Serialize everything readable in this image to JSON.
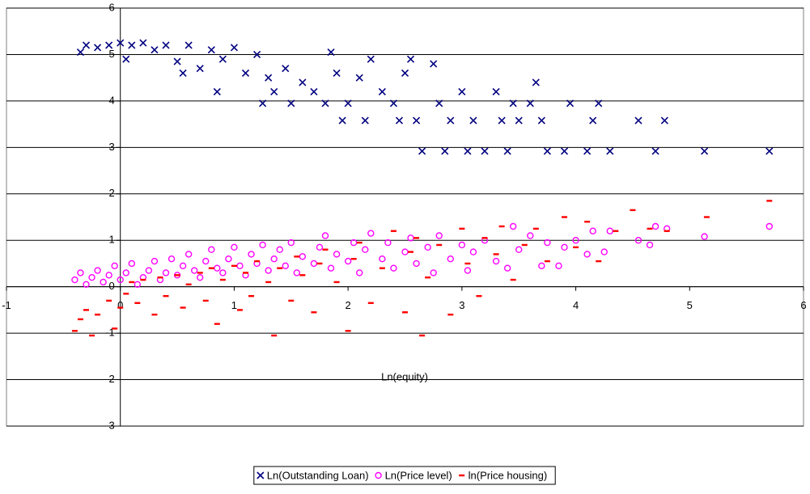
{
  "chart_data": {
    "type": "scatter",
    "x_label": "Ln(equity)",
    "xlim": [
      -1,
      6
    ],
    "xticks": [
      -1,
      0,
      1,
      2,
      3,
      4,
      5,
      6
    ],
    "ylim": [
      -3,
      6
    ],
    "yticks": [
      -3,
      -2,
      -1,
      0,
      1,
      2,
      3,
      4,
      5,
      6
    ],
    "grid": true,
    "legend": "bottom",
    "series": [
      {
        "name": "Ln(Outstanding Loan)",
        "color": "#000080",
        "marker": "x",
        "x": [
          -0.35,
          -0.3,
          -0.2,
          -0.1,
          0,
          0.05,
          0.1,
          0.2,
          0.3,
          0.4,
          0.5,
          0.55,
          0.6,
          0.7,
          0.8,
          0.85,
          0.9,
          1.0,
          1.1,
          1.2,
          1.3,
          1.35,
          1.25,
          1.45,
          1.5,
          1.6,
          1.7,
          1.8,
          1.85,
          1.9,
          1.95,
          2.0,
          2.1,
          2.15,
          2.2,
          2.3,
          2.4,
          2.45,
          2.5,
          2.55,
          2.6,
          2.65,
          2.75,
          2.8,
          2.85,
          2.9,
          3.0,
          3.05,
          3.1,
          3.2,
          3.3,
          3.35,
          3.4,
          3.45,
          3.5,
          3.6,
          3.65,
          3.7,
          3.75,
          3.9,
          3.95,
          4.1,
          4.15,
          4.2,
          4.3,
          4.55,
          4.7,
          4.78,
          5.13,
          5.7
        ],
        "values": [
          5.05,
          5.2,
          5.15,
          5.2,
          5.25,
          4.9,
          5.2,
          5.25,
          5.1,
          5.2,
          4.85,
          4.6,
          5.2,
          4.7,
          5.1,
          4.2,
          4.9,
          5.15,
          4.6,
          5.0,
          4.5,
          4.2,
          3.95,
          4.7,
          3.95,
          4.4,
          4.2,
          3.95,
          5.05,
          4.6,
          3.58,
          3.95,
          4.5,
          3.58,
          4.9,
          4.2,
          3.95,
          3.58,
          4.6,
          4.9,
          3.58,
          2.92,
          4.8,
          3.95,
          2.92,
          3.58,
          4.2,
          2.92,
          3.58,
          2.92,
          4.2,
          3.58,
          2.92,
          3.95,
          3.58,
          3.95,
          4.4,
          3.58,
          2.92,
          2.92,
          3.95,
          2.92,
          3.58,
          3.95,
          2.92,
          3.58,
          2.92,
          3.58,
          2.92,
          2.92
        ]
      },
      {
        "name": "Ln(Price level)",
        "color": "#ff00ff",
        "marker": "o",
        "x": [
          -0.4,
          -0.35,
          -0.3,
          -0.25,
          -0.2,
          -0.15,
          -0.1,
          -0.05,
          0,
          0.05,
          0.1,
          0.15,
          0.2,
          0.25,
          0.3,
          0.35,
          0.4,
          0.45,
          0.5,
          0.55,
          0.6,
          0.65,
          0.7,
          0.75,
          0.8,
          0.85,
          0.9,
          0.95,
          1.0,
          1.05,
          1.1,
          1.15,
          1.2,
          1.25,
          1.3,
          1.35,
          1.4,
          1.45,
          1.5,
          1.55,
          1.6,
          1.7,
          1.75,
          1.8,
          1.85,
          1.9,
          2.0,
          2.05,
          2.1,
          2.15,
          2.2,
          2.3,
          2.35,
          2.4,
          2.5,
          2.55,
          2.6,
          2.7,
          2.75,
          2.8,
          2.9,
          3.0,
          3.05,
          3.1,
          3.2,
          3.3,
          3.4,
          3.45,
          3.5,
          3.6,
          3.7,
          3.75,
          3.85,
          3.9,
          4.0,
          4.1,
          4.15,
          4.25,
          4.3,
          4.55,
          4.65,
          4.7,
          4.8,
          5.13,
          5.7
        ],
        "values": [
          0.15,
          0.3,
          0.05,
          0.2,
          0.35,
          0.1,
          0.25,
          0.45,
          0.15,
          0.3,
          0.5,
          0.05,
          0.2,
          0.35,
          0.55,
          0.15,
          0.3,
          0.6,
          0.25,
          0.45,
          0.7,
          0.35,
          0.2,
          0.55,
          0.8,
          0.4,
          0.3,
          0.6,
          0.85,
          0.45,
          0.25,
          0.7,
          0.5,
          0.9,
          0.35,
          0.6,
          0.8,
          0.45,
          0.95,
          0.3,
          0.65,
          0.5,
          0.85,
          1.1,
          0.4,
          0.7,
          0.55,
          0.95,
          0.3,
          0.8,
          1.15,
          0.6,
          0.95,
          0.4,
          0.75,
          1.05,
          0.5,
          0.85,
          0.3,
          1.1,
          0.6,
          0.9,
          0.35,
          0.75,
          1.0,
          0.55,
          0.4,
          1.3,
          0.8,
          1.1,
          0.45,
          0.95,
          0.45,
          0.85,
          1.0,
          0.7,
          1.2,
          0.75,
          1.2,
          1.0,
          0.9,
          1.3,
          1.25,
          1.08,
          1.3
        ]
      },
      {
        "name": "ln(Price housing)",
        "color": "#ff0000",
        "marker": "-",
        "x": [
          -0.4,
          -0.35,
          -0.3,
          -0.25,
          -0.2,
          -0.1,
          -0.05,
          0,
          0.05,
          0.1,
          0.15,
          0.2,
          0.3,
          0.35,
          0.4,
          0.5,
          0.55,
          0.6,
          0.7,
          0.75,
          0.8,
          0.85,
          0.9,
          1.0,
          1.05,
          1.1,
          1.15,
          1.2,
          1.3,
          1.35,
          1.4,
          1.5,
          1.55,
          1.6,
          1.7,
          1.75,
          1.8,
          1.9,
          2.0,
          2.05,
          2.1,
          2.2,
          2.3,
          2.4,
          2.5,
          2.55,
          2.6,
          2.65,
          2.7,
          2.8,
          2.9,
          3.0,
          3.05,
          3.15,
          3.2,
          3.3,
          3.35,
          3.45,
          3.55,
          3.65,
          3.75,
          3.9,
          4.0,
          4.1,
          4.2,
          4.35,
          4.5,
          4.65,
          4.8,
          5.15,
          5.7
        ],
        "values": [
          -0.95,
          -0.7,
          -0.5,
          -1.05,
          -0.6,
          -0.3,
          -0.9,
          -0.45,
          -0.15,
          0.1,
          -0.35,
          0.15,
          -0.6,
          0.2,
          -0.2,
          0.25,
          -0.45,
          0.05,
          0.3,
          -0.3,
          0.4,
          -0.8,
          0.15,
          0.45,
          -0.5,
          0.3,
          -0.2,
          0.55,
          0.1,
          -1.05,
          0.4,
          -0.3,
          0.65,
          0.25,
          -0.55,
          0.5,
          0.8,
          0.1,
          -0.95,
          0.6,
          0.95,
          -0.35,
          0.4,
          1.2,
          -0.55,
          0.75,
          1.05,
          -1.05,
          0.2,
          0.9,
          -0.6,
          1.25,
          0.5,
          -0.2,
          1.05,
          0.7,
          1.3,
          0.15,
          0.9,
          1.25,
          0.55,
          1.5,
          0.85,
          1.4,
          0.55,
          1.2,
          1.65,
          1.25,
          1.2,
          1.5,
          1.85
        ]
      }
    ]
  }
}
